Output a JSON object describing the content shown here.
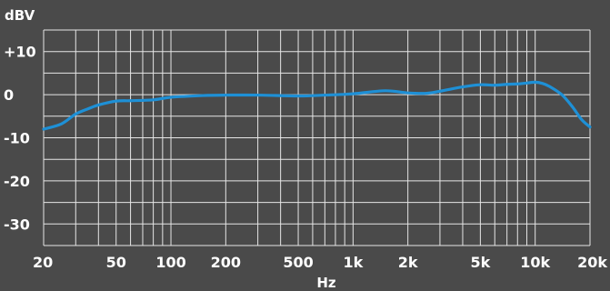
{
  "chart_data": {
    "type": "line",
    "title": "",
    "xlabel": "Hz",
    "ylabel": "dBV",
    "x_scale": "log",
    "xlim": [
      20,
      20000
    ],
    "ylim": [
      -35,
      15
    ],
    "grid": true,
    "x_ticks": [
      {
        "value": 20,
        "label": "20"
      },
      {
        "value": 50,
        "label": "50"
      },
      {
        "value": 100,
        "label": "100"
      },
      {
        "value": 200,
        "label": "200"
      },
      {
        "value": 500,
        "label": "500"
      },
      {
        "value": 1000,
        "label": "1k"
      },
      {
        "value": 2000,
        "label": "2k"
      },
      {
        "value": 5000,
        "label": "5k"
      },
      {
        "value": 10000,
        "label": "10k"
      },
      {
        "value": 20000,
        "label": "20k"
      }
    ],
    "y_ticks": [
      {
        "value": 10,
        "label": "+10"
      },
      {
        "value": 0,
        "label": "0"
      },
      {
        "value": -10,
        "label": "-10"
      },
      {
        "value": -20,
        "label": "-20"
      },
      {
        "value": -30,
        "label": "-30"
      }
    ],
    "series": [
      {
        "color": "#1e90d6",
        "x": [
          20,
          25,
          30,
          35,
          40,
          50,
          60,
          80,
          100,
          150,
          200,
          300,
          500,
          700,
          1000,
          1500,
          2000,
          2500,
          3000,
          4000,
          5000,
          6000,
          7000,
          8000,
          9000,
          10000,
          11000,
          12000,
          14000,
          16000,
          18000,
          20000
        ],
        "y": [
          -8,
          -6.8,
          -4.5,
          -3.3,
          -2.4,
          -1.5,
          -1.4,
          -1.2,
          -0.6,
          -0.2,
          -0.1,
          -0.1,
          -0.3,
          -0.1,
          0.2,
          0.9,
          0.4,
          0.3,
          0.8,
          1.8,
          2.3,
          2.2,
          2.4,
          2.5,
          2.7,
          2.9,
          2.6,
          1.9,
          0.0,
          -2.8,
          -5.8,
          -7.5
        ]
      }
    ]
  },
  "colors": {
    "background": "#4a4a4a",
    "grid": "#e6e6e6",
    "text": "#ffffff",
    "line": "#1e90d6"
  }
}
